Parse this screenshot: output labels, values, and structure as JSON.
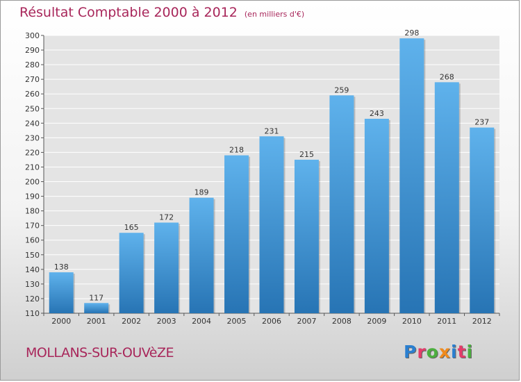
{
  "title": "Résultat Comptable 2000 à 2012",
  "subtitle": "(en milliers d'€)",
  "commune": "MOLLANS-SUR-OUVèZE",
  "logo": {
    "text": "Proxiti",
    "letter_colors": [
      "#2a7fd0",
      "#e23d6a",
      "#4caf3f",
      "#f08a1c",
      "#2a7fd0",
      "#e23d6a",
      "#4caf3f"
    ]
  },
  "colors": {
    "title": "#a8265a",
    "bar_light": "#5fb2ec",
    "bar_dark": "#2774b4",
    "grid": "#ffffff"
  },
  "chart_data": {
    "type": "bar",
    "categories": [
      "2000",
      "2001",
      "2002",
      "2003",
      "2004",
      "2005",
      "2006",
      "2007",
      "2008",
      "2009",
      "2010",
      "2011",
      "2012"
    ],
    "values": [
      138,
      117,
      165,
      172,
      189,
      218,
      231,
      215,
      259,
      243,
      298,
      268,
      237
    ],
    "ylim": [
      110,
      300
    ],
    "yticks": [
      110,
      120,
      130,
      140,
      150,
      160,
      170,
      180,
      190,
      200,
      210,
      220,
      230,
      240,
      250,
      260,
      270,
      280,
      290,
      300
    ],
    "grid": true,
    "data_labels": true
  }
}
